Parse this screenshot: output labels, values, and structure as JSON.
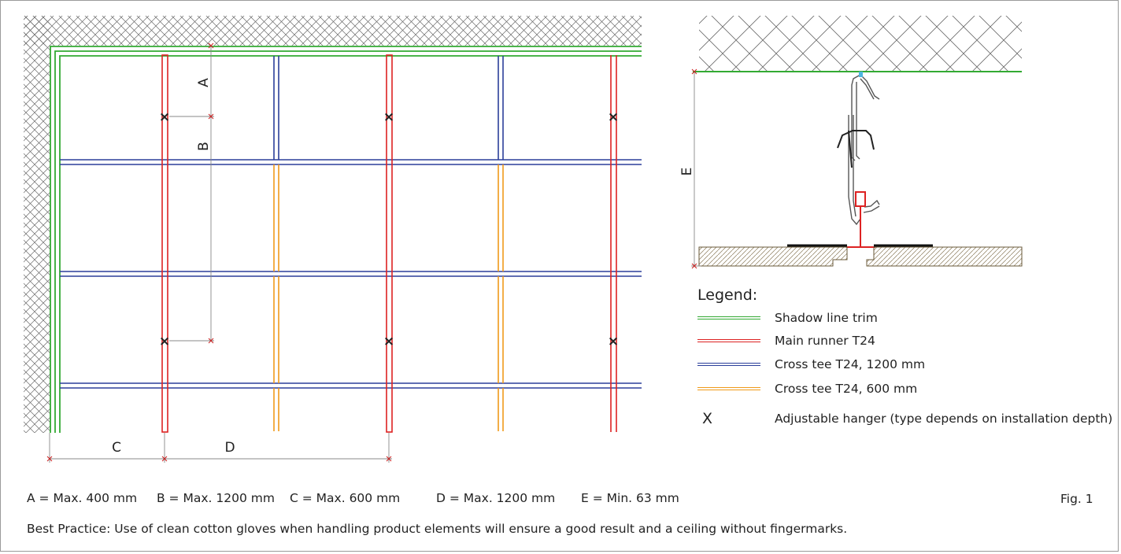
{
  "plan": {
    "dimensions": {
      "a": "A",
      "b": "B",
      "c": "C",
      "d": "D"
    },
    "hanger_mark": "×"
  },
  "section": {
    "dimension_e": "E"
  },
  "legend": {
    "title": "Legend:",
    "items": [
      {
        "label": "Shadow line trim",
        "color": "#33aa33"
      },
      {
        "label": "Main runner T24",
        "color": "#dd2222"
      },
      {
        "label": "Cross tee T24, 1200 mm",
        "color": "#2b3f9a"
      },
      {
        "label": "Cross tee T24, 600 mm",
        "color": "#f09a1a"
      },
      {
        "symbol": "X",
        "label": "Adjustable hanger (type depends on installation depth)"
      }
    ]
  },
  "dimensions_key": [
    "A = Max. 400 mm",
    "B = Max. 1200 mm",
    "C = Max. 600 mm",
    "D = Max. 1200 mm",
    "E = Min. 63 mm"
  ],
  "figure_label": "Fig. 1",
  "best_practice": "Best Practice: Use of clean cotton gloves when handling product elements will ensure a good result and a ceiling without fingermarks."
}
